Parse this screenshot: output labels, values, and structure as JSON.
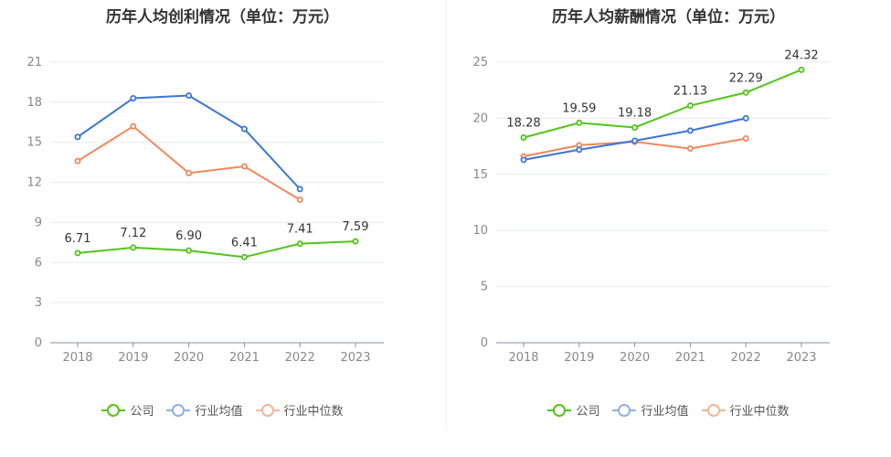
{
  "colors": {
    "company": "#52c41a",
    "industry_avg": "#3a75d6",
    "industry_median": "#f0875a",
    "grid": "#e6eaf2",
    "axis": "#8a90a6",
    "tick_text": "#888888",
    "label_text": "#333333"
  },
  "legend": [
    "公司",
    "行业均值",
    "行业中位数"
  ],
  "chart_data": [
    {
      "type": "line",
      "title": "历年人均创利情况（单位：万元）",
      "categories": [
        "2018",
        "2019",
        "2020",
        "2021",
        "2022",
        "2023"
      ],
      "ylim": [
        0,
        21
      ],
      "yticks": [
        "0",
        "3",
        "6",
        "9",
        "12",
        "15",
        "18",
        "21"
      ],
      "grid": true,
      "legend_position": "bottom",
      "series": [
        {
          "name": "公司",
          "values": [
            6.71,
            7.12,
            6.9,
            6.41,
            7.41,
            7.59
          ],
          "labels": [
            "6.71",
            "7.12",
            "6.90",
            "6.41",
            "7.41",
            "7.59"
          ]
        },
        {
          "name": "行业均值",
          "values": [
            15.4,
            18.3,
            18.5,
            16.0,
            11.5,
            null
          ]
        },
        {
          "name": "行业中位数",
          "values": [
            13.6,
            16.2,
            12.7,
            13.2,
            10.7,
            null
          ]
        }
      ]
    },
    {
      "type": "line",
      "title": "历年人均薪酬情况（单位：万元）",
      "categories": [
        "2018",
        "2019",
        "2020",
        "2021",
        "2022",
        "2023"
      ],
      "ylim": [
        0,
        25
      ],
      "yticks": [
        "0",
        "5",
        "10",
        "15",
        "20",
        "25"
      ],
      "grid": true,
      "legend_position": "bottom",
      "series": [
        {
          "name": "公司",
          "values": [
            18.28,
            19.59,
            19.18,
            21.13,
            22.29,
            24.32
          ],
          "labels": [
            "18.28",
            "19.59",
            "19.18",
            "21.13",
            "22.29",
            "24.32"
          ]
        },
        {
          "name": "行业均值",
          "values": [
            16.3,
            17.2,
            18.0,
            18.9,
            20.0,
            null
          ]
        },
        {
          "name": "行业中位数",
          "values": [
            16.6,
            17.6,
            17.9,
            17.3,
            18.2,
            null
          ]
        }
      ]
    }
  ]
}
